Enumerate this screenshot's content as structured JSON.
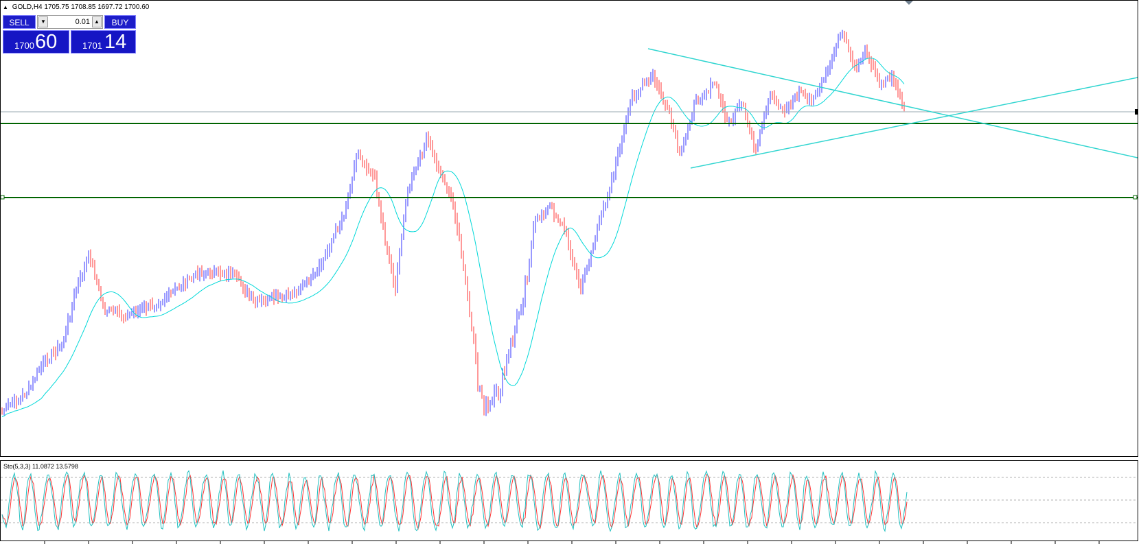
{
  "chart": {
    "symbol_label": "GOLD,H4",
    "ohlc": "1705.75 1708.85 1697.72 1700.60"
  },
  "trade_panel": {
    "sell_label": "SELL",
    "buy_label": "BUY",
    "lot_value": "0.01",
    "sell_price_small": "1700",
    "sell_price_big": "60",
    "buy_price_small": "1701",
    "buy_price_big": "14"
  },
  "indicator": {
    "label": "Sto(5,3,3) 11.0872 13.5798"
  },
  "colors": {
    "bull_bar": "#3333ff",
    "bear_bar": "#ff3333",
    "moving_average": "#00d8d8",
    "trendline": "#30d5d0",
    "horizontal_level": "#006400",
    "stoch_main": "#20c0c0",
    "stoch_signal": "#ff3030",
    "panel_blue": "#1d1dc9"
  }
}
